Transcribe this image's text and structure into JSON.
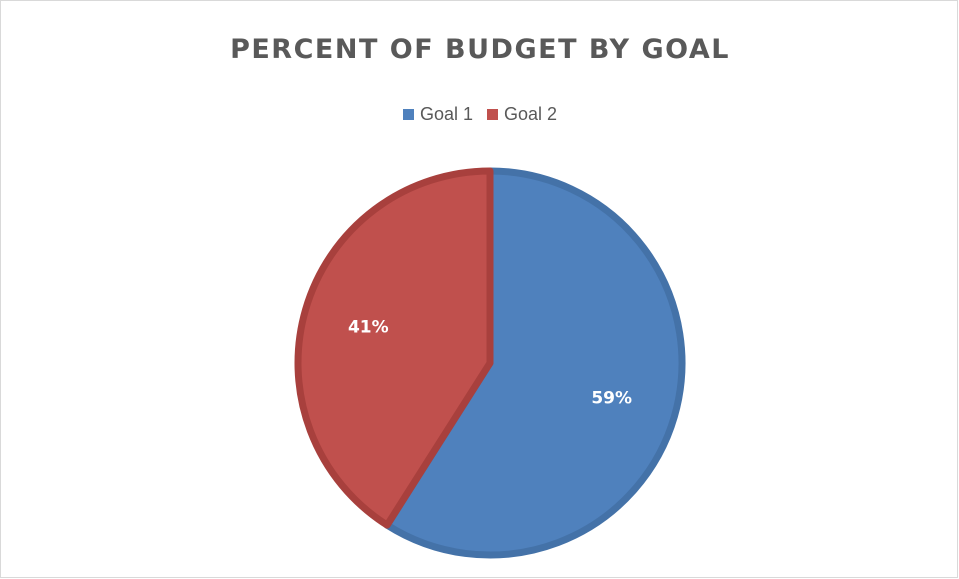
{
  "chart_data": {
    "type": "pie",
    "title": "PERCENT OF BUDGET BY GOAL",
    "categories": [
      "Goal 1",
      "Goal 2"
    ],
    "values": [
      59,
      41
    ],
    "data_labels": [
      "59%",
      "41%"
    ],
    "colors": [
      "#4f81bd",
      "#c0504d"
    ],
    "border_colors": [
      "#4472a8",
      "#a8403d"
    ],
    "legend_position": "top",
    "start_angle_deg": 0,
    "direction": "clockwise"
  }
}
